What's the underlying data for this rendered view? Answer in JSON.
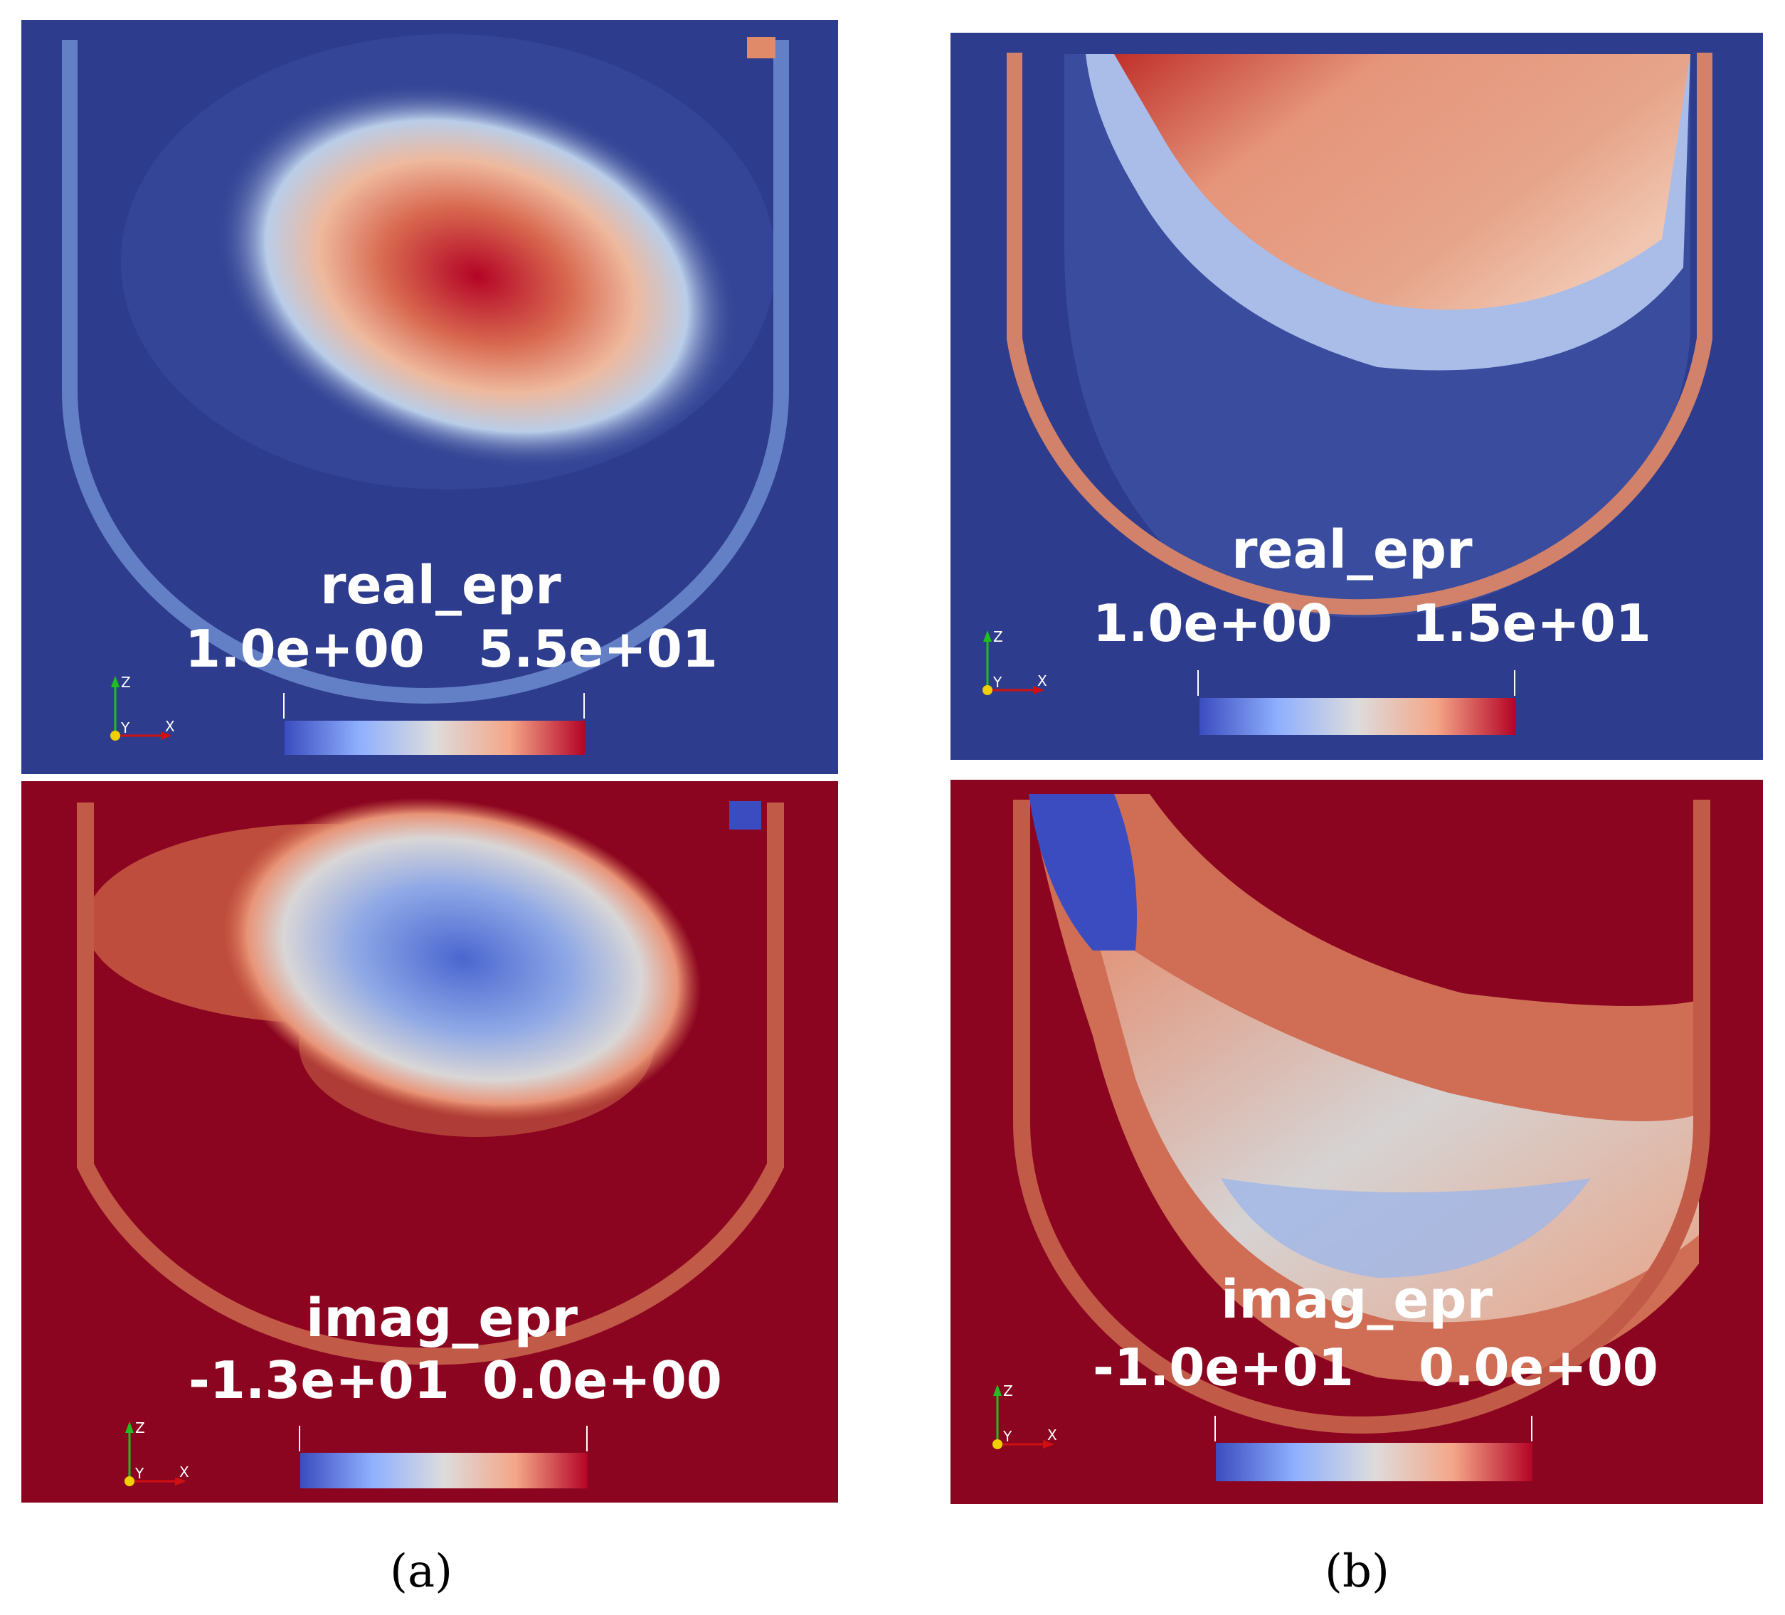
{
  "colors": {
    "low_background": "#2e3c8e",
    "high_background": "#8b0520",
    "cool": "#3b4cc0",
    "mid": "#dddcdc",
    "warm": "#b40426"
  },
  "panels": [
    {
      "id": "a-top",
      "variable": "real_epr",
      "min": "1.0e+00",
      "max": "5.5e+01",
      "background": "low"
    },
    {
      "id": "b-top",
      "variable": "real_epr",
      "min": "1.0e+00",
      "max": "1.5e+01",
      "background": "low"
    },
    {
      "id": "a-bottom",
      "variable": "imag_epr",
      "min": "-1.3e+01",
      "max": "0.0e+00",
      "background": "high"
    },
    {
      "id": "b-bottom",
      "variable": "imag_epr",
      "min": "-1.0e+01",
      "max": "0.0e+00",
      "background": "high"
    }
  ],
  "axis_labels": {
    "z": "Z",
    "y": "Y",
    "x": "X"
  },
  "captions": {
    "a": "(a)",
    "b": "(b)"
  }
}
